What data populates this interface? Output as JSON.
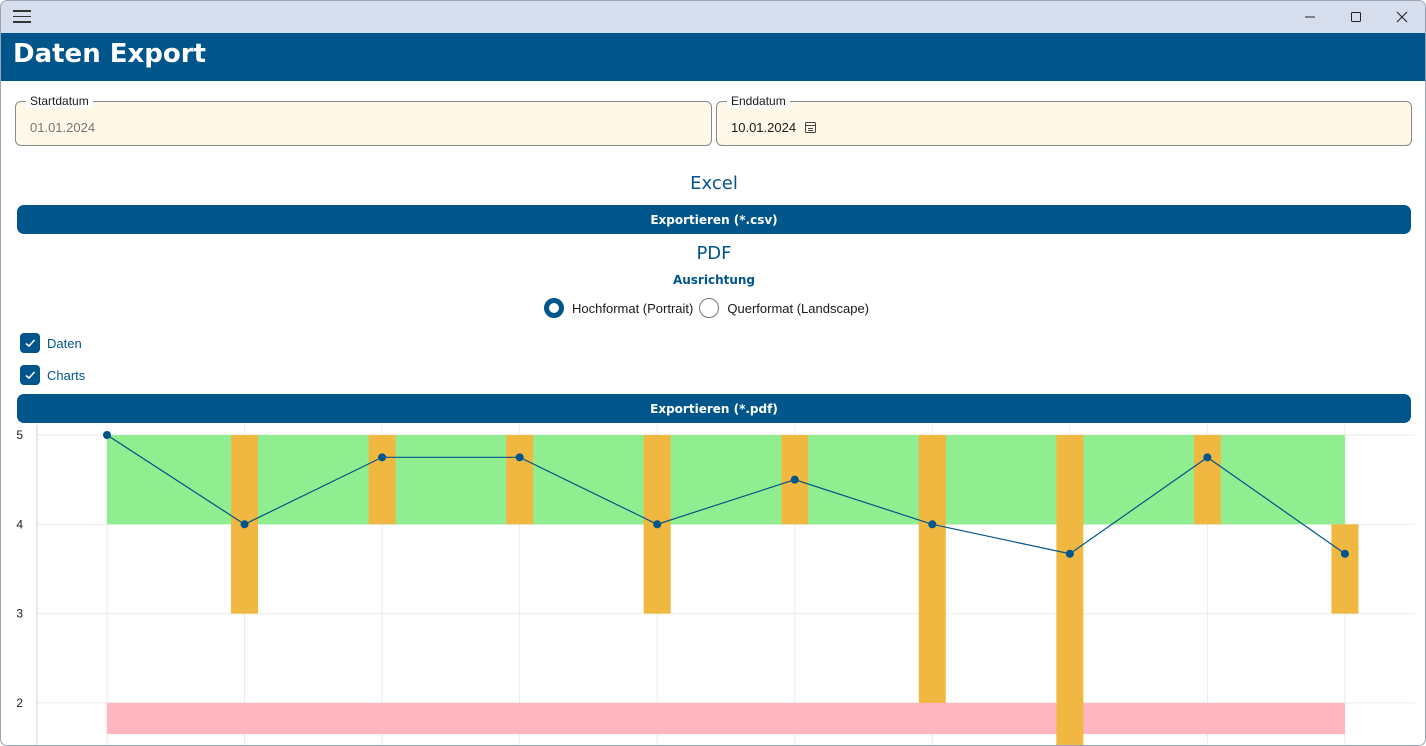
{
  "window": {
    "menu_icon": "hamburger-menu-icon",
    "controls": [
      "minimize-icon",
      "maximize-icon",
      "close-icon"
    ]
  },
  "header": {
    "title": "Daten Export"
  },
  "dates": {
    "start": {
      "label": "Startdatum",
      "value": "01.01.2024"
    },
    "end": {
      "label": "Enddatum",
      "value": "10.01.2024",
      "icon": "calendar-icon"
    }
  },
  "excel": {
    "heading": "Excel",
    "button_label": "Exportieren (*.csv)"
  },
  "pdf": {
    "heading": "PDF",
    "orientation_label": "Ausrichtung",
    "orientation_options": [
      {
        "label": "Hochformat (Portrait)",
        "selected": true
      },
      {
        "label": "Querformat (Landscape)",
        "selected": false
      }
    ],
    "checkboxes": [
      {
        "label": "Daten",
        "checked": true
      },
      {
        "label": "Charts",
        "checked": true
      }
    ],
    "button_label": "Exportieren (*.pdf)"
  },
  "colors": {
    "primary": "#00558b",
    "field_background": "#fff8e8",
    "green_band": "#90ee90",
    "red_band": "#ffb6c1",
    "bar": "#f0b840",
    "line": "#00558b",
    "grid": "#ebebeb"
  },
  "chart_data": {
    "type": "line",
    "title": "",
    "xlabel": "",
    "ylabel": "",
    "y_visible_range": [
      1.65,
      5.1
    ],
    "y_ticks": [
      2,
      3,
      4,
      5
    ],
    "grid": true,
    "legend": "none",
    "bands": [
      {
        "from": 4,
        "to": 5,
        "color": "#90ee90"
      },
      {
        "from": 1.65,
        "to": 2,
        "color": "#ffb6c1"
      }
    ],
    "x": [
      1,
      2,
      3,
      4,
      5,
      6,
      7,
      8,
      9,
      10
    ],
    "series": [
      {
        "type": "line",
        "values": [
          5,
          4,
          4.75,
          4.75,
          4,
          4.5,
          4,
          3.67,
          4.75,
          3.67
        ]
      }
    ],
    "range_bars": [
      {
        "x": 2,
        "low": 3,
        "high": 5
      },
      {
        "x": 3,
        "low": 4,
        "high": 5
      },
      {
        "x": 4,
        "low": 4,
        "high": 5
      },
      {
        "x": 5,
        "low": 3,
        "high": 5
      },
      {
        "x": 6,
        "low": 4,
        "high": 5
      },
      {
        "x": 7,
        "low": 2,
        "high": 5
      },
      {
        "x": 8,
        "low": 1.65,
        "high": 5
      },
      {
        "x": 9,
        "low": 4,
        "high": 5
      },
      {
        "x": 10,
        "low": 3,
        "high": 4
      }
    ]
  }
}
